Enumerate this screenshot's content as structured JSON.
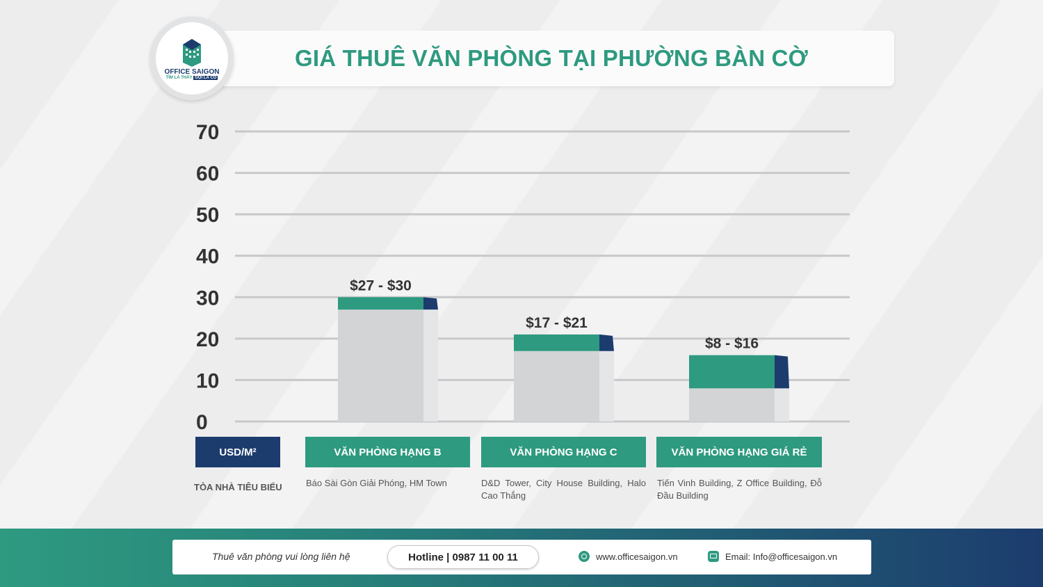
{
  "title": "GIÁ THUÊ VĂN PHÒNG TẠI PHƯỜNG BÀN CỜ",
  "logo": {
    "name": "OFFICE SAIGON",
    "tagline_prefix": "TÌM LÀ THẤY",
    "tagline_highlight": "GỌI LÀ CÓ"
  },
  "colors": {
    "accent_green": "#2e9a80",
    "navy": "#1c3c6e",
    "bar_gray": "#d3d4d6"
  },
  "chart_data": {
    "type": "bar",
    "title": "GIÁ THUÊ VĂN PHÒNG TẠI PHƯỜNG BÀN CỜ",
    "ylabel": "USD/M²",
    "ylim": [
      0,
      70
    ],
    "yticks": [
      0,
      10,
      20,
      30,
      40,
      50,
      60,
      70
    ],
    "grid": true,
    "categories": [
      "VĂN PHÒNG HẠNG B",
      "VĂN PHÒNG HẠNG C",
      "VĂN PHÒNG HẠNG GIÁ RẺ"
    ],
    "ranges": [
      {
        "low": 27,
        "high": 30,
        "label": "$27 - $30"
      },
      {
        "low": 17,
        "high": 21,
        "label": "$17 - $21"
      },
      {
        "low": 8,
        "high": 16,
        "label": "$8 - $16"
      }
    ]
  },
  "unit_label": "USD/M²",
  "notable_label": "TÒA NHÀ TIÊU BIỂU",
  "buildings": [
    "Báo Sài Gòn Giải Phóng, HM Town",
    "D&D Tower, City House Building, Halo Cao Thắng",
    "Tiến Vinh Building, Z Office Building, Đỗ Đầu Building"
  ],
  "footer": {
    "contact_text": "Thuê văn phòng vui lòng liên hệ",
    "hotline": "Hotline | 0987 11 00 11",
    "website": "www.officesaigon.vn",
    "email": "Email: Info@officesaigon.vn"
  }
}
